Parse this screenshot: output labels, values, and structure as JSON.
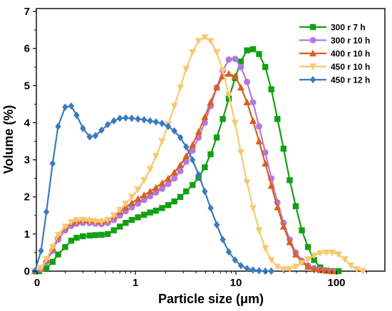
{
  "chart_data": {
    "type": "line",
    "xlabel": "Particle size (μm)",
    "ylabel": "Volume (%)",
    "xscale": "log-with-zero",
    "xticks": [
      {
        "value": 0,
        "label": "0"
      },
      {
        "value": 1,
        "label": "1"
      },
      {
        "value": 10,
        "label": "10"
      },
      {
        "value": 100,
        "label": "100"
      }
    ],
    "yticks": [
      "0",
      "1",
      "2",
      "3",
      "4",
      "5",
      "6",
      "7"
    ],
    "ylim": [
      0,
      7
    ],
    "legend_position": "top-right",
    "series": [
      {
        "name": "300 r 7 h",
        "color": "#12a012",
        "marker": "square",
        "x": [
          0.11,
          0.13,
          0.15,
          0.17,
          0.2,
          0.23,
          0.26,
          0.3,
          0.35,
          0.4,
          0.46,
          0.53,
          0.61,
          0.7,
          0.8,
          0.92,
          1.06,
          1.22,
          1.4,
          1.6,
          1.84,
          2.12,
          2.44,
          2.8,
          3.2,
          3.7,
          4.25,
          4.9,
          5.6,
          6.45,
          7.4,
          8.5,
          9.8,
          11.2,
          12.9,
          14.8,
          17,
          19.6,
          22.5,
          25.9,
          29.8,
          34.3,
          39.4,
          45.3,
          52.1,
          60,
          69,
          79.3,
          91.2,
          105
        ],
        "values": [
          0.0,
          0.08,
          0.25,
          0.45,
          0.65,
          0.82,
          0.9,
          0.94,
          0.96,
          0.97,
          0.98,
          1.0,
          1.1,
          1.2,
          1.3,
          1.38,
          1.45,
          1.52,
          1.58,
          1.63,
          1.7,
          1.78,
          1.88,
          2.0,
          2.15,
          2.32,
          2.52,
          2.8,
          3.15,
          3.6,
          4.1,
          4.65,
          5.2,
          5.65,
          5.95,
          5.98,
          5.85,
          5.5,
          4.9,
          4.1,
          3.3,
          2.45,
          1.75,
          1.1,
          0.65,
          0.3,
          0.1,
          0.02,
          0.0,
          0.0
        ]
      },
      {
        "name": "300 r 10 h",
        "color": "#b178e0",
        "marker": "circle",
        "x": [
          0.1,
          0.115,
          0.13,
          0.15,
          0.17,
          0.2,
          0.23,
          0.26,
          0.3,
          0.35,
          0.4,
          0.46,
          0.53,
          0.61,
          0.7,
          0.8,
          0.92,
          1.06,
          1.22,
          1.4,
          1.6,
          1.84,
          2.12,
          2.44,
          2.8,
          3.2,
          3.7,
          4.25,
          4.9,
          5.6,
          6.45,
          7.4,
          8.5,
          9.8,
          11.2,
          12.9,
          14.8,
          17,
          19.6,
          22.5,
          25.9,
          29.8,
          34.3,
          39.4,
          45.3,
          52.1,
          60,
          69,
          79.3,
          91.2
        ],
        "values": [
          0.0,
          0.05,
          0.25,
          0.55,
          0.85,
          1.1,
          1.22,
          1.28,
          1.3,
          1.3,
          1.28,
          1.27,
          1.3,
          1.38,
          1.5,
          1.62,
          1.72,
          1.82,
          1.92,
          2.02,
          2.12,
          2.22,
          2.35,
          2.5,
          2.7,
          2.95,
          3.25,
          3.6,
          4.0,
          4.45,
          4.95,
          5.4,
          5.7,
          5.72,
          5.5,
          5.1,
          4.55,
          3.9,
          3.2,
          2.5,
          1.85,
          1.3,
          0.85,
          0.5,
          0.28,
          0.15,
          0.08,
          0.04,
          0.02,
          0.0
        ]
      },
      {
        "name": "400 r 10 h",
        "color": "#d95f1c",
        "marker": "triangle-up",
        "x": [
          0.1,
          0.115,
          0.13,
          0.15,
          0.17,
          0.2,
          0.23,
          0.26,
          0.3,
          0.35,
          0.4,
          0.46,
          0.53,
          0.61,
          0.7,
          0.8,
          0.92,
          1.06,
          1.22,
          1.4,
          1.6,
          1.84,
          2.12,
          2.44,
          2.8,
          3.2,
          3.7,
          4.25,
          4.9,
          5.6,
          6.45,
          7.4,
          8.5,
          9.8,
          11.2,
          12.9,
          14.8,
          17,
          19.6,
          22.5,
          25.9,
          29.8,
          34.3,
          39.4,
          45.3,
          52.1,
          60,
          69,
          79.3,
          91.2
        ],
        "values": [
          0.0,
          0.08,
          0.3,
          0.62,
          0.95,
          1.18,
          1.3,
          1.36,
          1.38,
          1.37,
          1.35,
          1.34,
          1.38,
          1.48,
          1.6,
          1.72,
          1.84,
          1.95,
          2.05,
          2.15,
          2.25,
          2.37,
          2.5,
          2.66,
          2.86,
          3.1,
          3.4,
          3.75,
          4.15,
          4.55,
          4.95,
          5.25,
          5.32,
          5.25,
          4.95,
          4.55,
          4.05,
          3.5,
          2.9,
          2.3,
          1.72,
          1.2,
          0.78,
          0.45,
          0.25,
          0.12,
          0.06,
          0.03,
          0.01,
          0.0
        ]
      },
      {
        "name": "450 r 10 h",
        "color": "#f7c870",
        "marker": "triangle-down",
        "x": [
          0.1,
          0.115,
          0.13,
          0.15,
          0.17,
          0.2,
          0.23,
          0.26,
          0.3,
          0.35,
          0.4,
          0.46,
          0.53,
          0.61,
          0.7,
          0.8,
          0.92,
          1.06,
          1.22,
          1.4,
          1.6,
          1.84,
          2.12,
          2.44,
          2.8,
          3.2,
          3.7,
          4.25,
          4.9,
          5.6,
          6.45,
          7.4,
          8.5,
          9.8,
          11.2,
          12.9,
          14.8,
          17,
          19.6,
          22.5,
          25.9,
          29.8,
          34.3,
          39.4,
          45.3,
          52.1,
          60,
          69,
          79.3,
          91.2,
          105,
          121,
          139,
          160,
          184
        ],
        "values": [
          0.0,
          0.08,
          0.32,
          0.65,
          0.98,
          1.2,
          1.32,
          1.37,
          1.38,
          1.36,
          1.34,
          1.33,
          1.38,
          1.5,
          1.65,
          1.82,
          2.0,
          2.2,
          2.45,
          2.75,
          3.1,
          3.5,
          3.95,
          4.45,
          4.95,
          5.45,
          5.9,
          6.2,
          6.3,
          6.2,
          5.9,
          5.4,
          4.75,
          4.0,
          3.2,
          2.4,
          1.7,
          1.1,
          0.62,
          0.3,
          0.12,
          0.05,
          0.06,
          0.12,
          0.22,
          0.32,
          0.42,
          0.48,
          0.5,
          0.5,
          0.45,
          0.32,
          0.15,
          0.05,
          0.0
        ]
      },
      {
        "name": "450 r 12 h",
        "color": "#3a7ac0",
        "marker": "diamond",
        "x": [
          0.1,
          0.115,
          0.13,
          0.15,
          0.17,
          0.2,
          0.23,
          0.26,
          0.3,
          0.35,
          0.4,
          0.46,
          0.53,
          0.61,
          0.7,
          0.8,
          0.92,
          1.06,
          1.22,
          1.4,
          1.6,
          1.84,
          2.12,
          2.44,
          2.8,
          3.2,
          3.7,
          4.25,
          4.9,
          5.6,
          6.45,
          7.4,
          8.5,
          9.8,
          11.2,
          12.9,
          14.8,
          17,
          19.6,
          22.5
        ],
        "values": [
          0.0,
          0.55,
          1.6,
          2.9,
          3.9,
          4.42,
          4.45,
          4.2,
          3.85,
          3.62,
          3.65,
          3.8,
          3.95,
          4.05,
          4.12,
          4.13,
          4.12,
          4.1,
          4.08,
          4.05,
          4.02,
          3.98,
          3.9,
          3.78,
          3.6,
          3.35,
          3.0,
          2.6,
          2.15,
          1.7,
          1.25,
          0.85,
          0.52,
          0.3,
          0.15,
          0.07,
          0.03,
          0.01,
          0.0,
          0.0
        ]
      }
    ]
  }
}
